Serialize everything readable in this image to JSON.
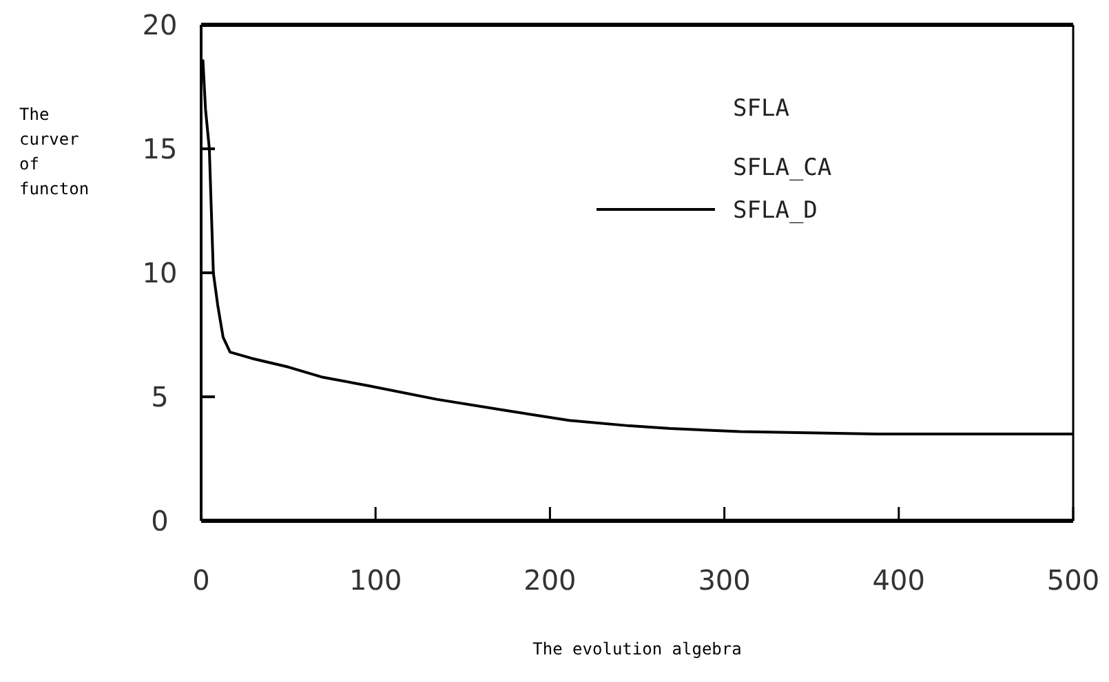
{
  "chart_data": {
    "type": "line",
    "xlabel": "The evolution algebra",
    "ylabel": "The curver of functon",
    "xlim": [
      0,
      500
    ],
    "ylim": [
      0,
      20
    ],
    "xticks": [
      0,
      100,
      200,
      300,
      400,
      500
    ],
    "yticks": [
      0,
      5,
      10,
      15,
      20
    ],
    "grid": false,
    "legend": "top right",
    "marker": "none",
    "line_style": "solid",
    "annotations": [
      "SFLA",
      "SFLA_CA"
    ],
    "series": [
      {
        "name": "SFLA_D",
        "color": "#000000",
        "x": [
          1,
          2.5,
          4.7,
          7,
          9.5,
          12.6,
          16.6,
          29,
          50,
          69,
          95.5,
          135,
          174.5,
          211,
          245.6,
          269,
          309,
          388,
          500
        ],
        "values": [
          18.6,
          16.6,
          15,
          10,
          8.7,
          7.4,
          6.8,
          6.55,
          6.2,
          5.8,
          5.45,
          4.9,
          4.45,
          4.05,
          3.83,
          3.72,
          3.6,
          3.5,
          3.5
        ]
      }
    ]
  }
}
